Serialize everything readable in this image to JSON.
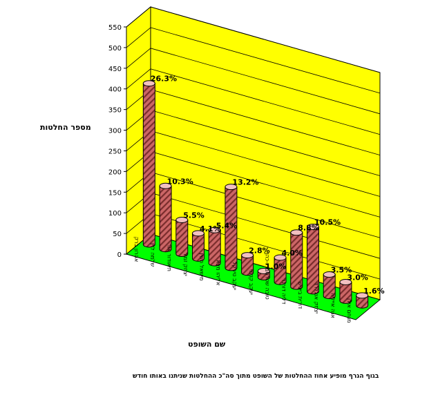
{
  "chart_data": {
    "type": "bar",
    "ylabel": "מספר החלטות",
    "xlabel": "שם השופט",
    "caption": "בגוף הגרף מופיע אחוז ההחלטות של השופט מתוך סה\"כ ההחלטות שניתנו באותו חודש",
    "ylim": [
      0,
      550
    ],
    "yticks": [
      0,
      50,
      100,
      150,
      200,
      250,
      300,
      350,
      400,
      450,
      500,
      550
    ],
    "grid": true,
    "categories": [
      "אהרון ברק",
      "שלמה לוין",
      "תיאודור אור",
      "יצחק זמיר",
      "מישאל חשין",
      "אליהו מצא",
      "יעקב טירקל",
      "יעקב קדמי",
      "טובה שטרסברג-כהן",
      "דליה דורנר",
      "דורית בייניש",
      "יצחק אנגלרד",
      "אנה אייליה",
      "מנחם אילן"
    ],
    "values": [
      390,
      153,
      82,
      61,
      80,
      196,
      42,
      15,
      59,
      131,
      156,
      52,
      45,
      24
    ],
    "labels": [
      "26.3%",
      "10.3%",
      "5.5%",
      "4.1%",
      "5.4%",
      "13.2%",
      "2.8%",
      "1.0%",
      "4.0%",
      "8.8%",
      "10.5%",
      "3.5%",
      "3.0%",
      "1.6%"
    ],
    "colors": {
      "wall": "#ffff00",
      "floor": "#00ff00",
      "bar": "#cc6666",
      "bar_stripe": "#7a2d2d",
      "bar_top": "#f2c0c0"
    }
  }
}
